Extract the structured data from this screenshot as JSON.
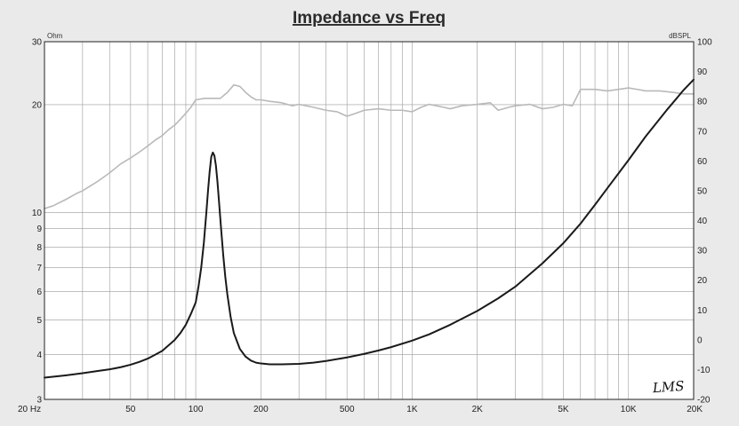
{
  "chart_data": {
    "type": "line",
    "title": "Impedance vs Freq",
    "left_unit": "Ohm",
    "right_unit": "dBSPL",
    "watermark": "LMS",
    "x_scale": "log",
    "xlim": [
      20,
      20000
    ],
    "x_ticks": [
      {
        "value": 20,
        "label": "20 Hz"
      },
      {
        "value": 50,
        "label": "50"
      },
      {
        "value": 100,
        "label": "100"
      },
      {
        "value": 200,
        "label": "200"
      },
      {
        "value": 500,
        "label": "500"
      },
      {
        "value": 1000,
        "label": "1K"
      },
      {
        "value": 2000,
        "label": "2K"
      },
      {
        "value": 5000,
        "label": "5K"
      },
      {
        "value": 10000,
        "label": "10K"
      },
      {
        "value": 20000,
        "label": "20K"
      }
    ],
    "y_left_scale": "log",
    "ylim_left": [
      3,
      30
    ],
    "y_left_ticks": [
      {
        "value": 3,
        "label": "3"
      },
      {
        "value": 4,
        "label": "4"
      },
      {
        "value": 5,
        "label": "5"
      },
      {
        "value": 6,
        "label": "6"
      },
      {
        "value": 7,
        "label": "7"
      },
      {
        "value": 8,
        "label": "8"
      },
      {
        "value": 9,
        "label": "9"
      },
      {
        "value": 10,
        "label": "10"
      },
      {
        "value": 20,
        "label": "20"
      },
      {
        "value": 30,
        "label": "30"
      }
    ],
    "ylim_right": [
      -20,
      100
    ],
    "y_right_ticks": [
      {
        "value": -20,
        "label": "-20"
      },
      {
        "value": -10,
        "label": "-10"
      },
      {
        "value": 0,
        "label": "0"
      },
      {
        "value": 10,
        "label": "10"
      },
      {
        "value": 20,
        "label": "20"
      },
      {
        "value": 30,
        "label": "30"
      },
      {
        "value": 40,
        "label": "40"
      },
      {
        "value": 50,
        "label": "50"
      },
      {
        "value": 60,
        "label": "60"
      },
      {
        "value": 70,
        "label": "70"
      },
      {
        "value": 80,
        "label": "80"
      },
      {
        "value": 90,
        "label": "90"
      },
      {
        "value": 100,
        "label": "100"
      }
    ],
    "grid": true,
    "colors": {
      "impedance": "#1a1a1a",
      "spl": "#b9b9b9",
      "grid": "#9a9a9a",
      "background": "#ffffff",
      "page": "#e9eae9"
    },
    "series": [
      {
        "axis": "left",
        "x": [
          20,
          25,
          30,
          35,
          40,
          45,
          50,
          55,
          60,
          65,
          70,
          75,
          80,
          85,
          90,
          95,
          100,
          103,
          106,
          109,
          112,
          114,
          116,
          118,
          120,
          122,
          124,
          126,
          128,
          131,
          134,
          137,
          140,
          145,
          150,
          160,
          170,
          180,
          190,
          200,
          220,
          250,
          300,
          350,
          400,
          500,
          600,
          700,
          800,
          1000,
          1200,
          1500,
          2000,
          2500,
          3000,
          4000,
          5000,
          6000,
          7000,
          8000,
          10000,
          12000,
          15000,
          18000,
          20000
        ],
        "y": [
          3.45,
          3.5,
          3.55,
          3.6,
          3.64,
          3.69,
          3.75,
          3.82,
          3.9,
          4.0,
          4.1,
          4.25,
          4.4,
          4.6,
          4.85,
          5.2,
          5.6,
          6.2,
          7.0,
          8.2,
          10.0,
          11.5,
          13.0,
          14.3,
          14.7,
          14.4,
          13.5,
          12.2,
          10.8,
          9.0,
          7.6,
          6.6,
          5.9,
          5.1,
          4.6,
          4.15,
          3.95,
          3.85,
          3.8,
          3.78,
          3.76,
          3.76,
          3.77,
          3.8,
          3.84,
          3.93,
          4.02,
          4.11,
          4.2,
          4.38,
          4.56,
          4.85,
          5.3,
          5.75,
          6.2,
          7.2,
          8.2,
          9.3,
          10.5,
          11.7,
          14.0,
          16.3,
          19.3,
          22.0,
          23.5
        ]
      },
      {
        "axis": "right",
        "x": [
          20,
          22,
          25,
          28,
          30,
          35,
          40,
          45,
          50,
          55,
          60,
          65,
          70,
          75,
          80,
          85,
          90,
          95,
          100,
          110,
          120,
          130,
          140,
          150,
          160,
          170,
          180,
          190,
          200,
          220,
          250,
          280,
          300,
          350,
          400,
          450,
          500,
          550,
          600,
          700,
          800,
          900,
          1000,
          1100,
          1200,
          1400,
          1500,
          1700,
          2000,
          2300,
          2500,
          2800,
          3000,
          3500,
          4000,
          4500,
          5000,
          5500,
          6000,
          7000,
          8000,
          9000,
          10000,
          11000,
          12000,
          14000,
          16000,
          18000,
          20000
        ],
        "y": [
          44,
          45,
          47,
          49,
          50,
          53,
          56,
          59,
          61,
          63,
          65,
          67,
          68.5,
          70.5,
          72,
          74,
          76,
          78,
          80.5,
          81,
          81,
          81,
          83,
          85.5,
          85,
          83,
          81.5,
          80.5,
          80.5,
          80,
          79.5,
          78.5,
          79,
          78,
          77,
          76.5,
          75,
          76,
          77,
          77.5,
          77,
          77,
          76.5,
          78,
          79,
          78,
          77.5,
          78.5,
          79,
          79.5,
          77,
          78,
          78.5,
          79,
          77.5,
          78,
          79,
          78.5,
          84,
          84,
          83.5,
          84,
          84.5,
          84,
          83.5,
          83.5,
          83,
          82.5,
          82.5
        ]
      }
    ]
  }
}
